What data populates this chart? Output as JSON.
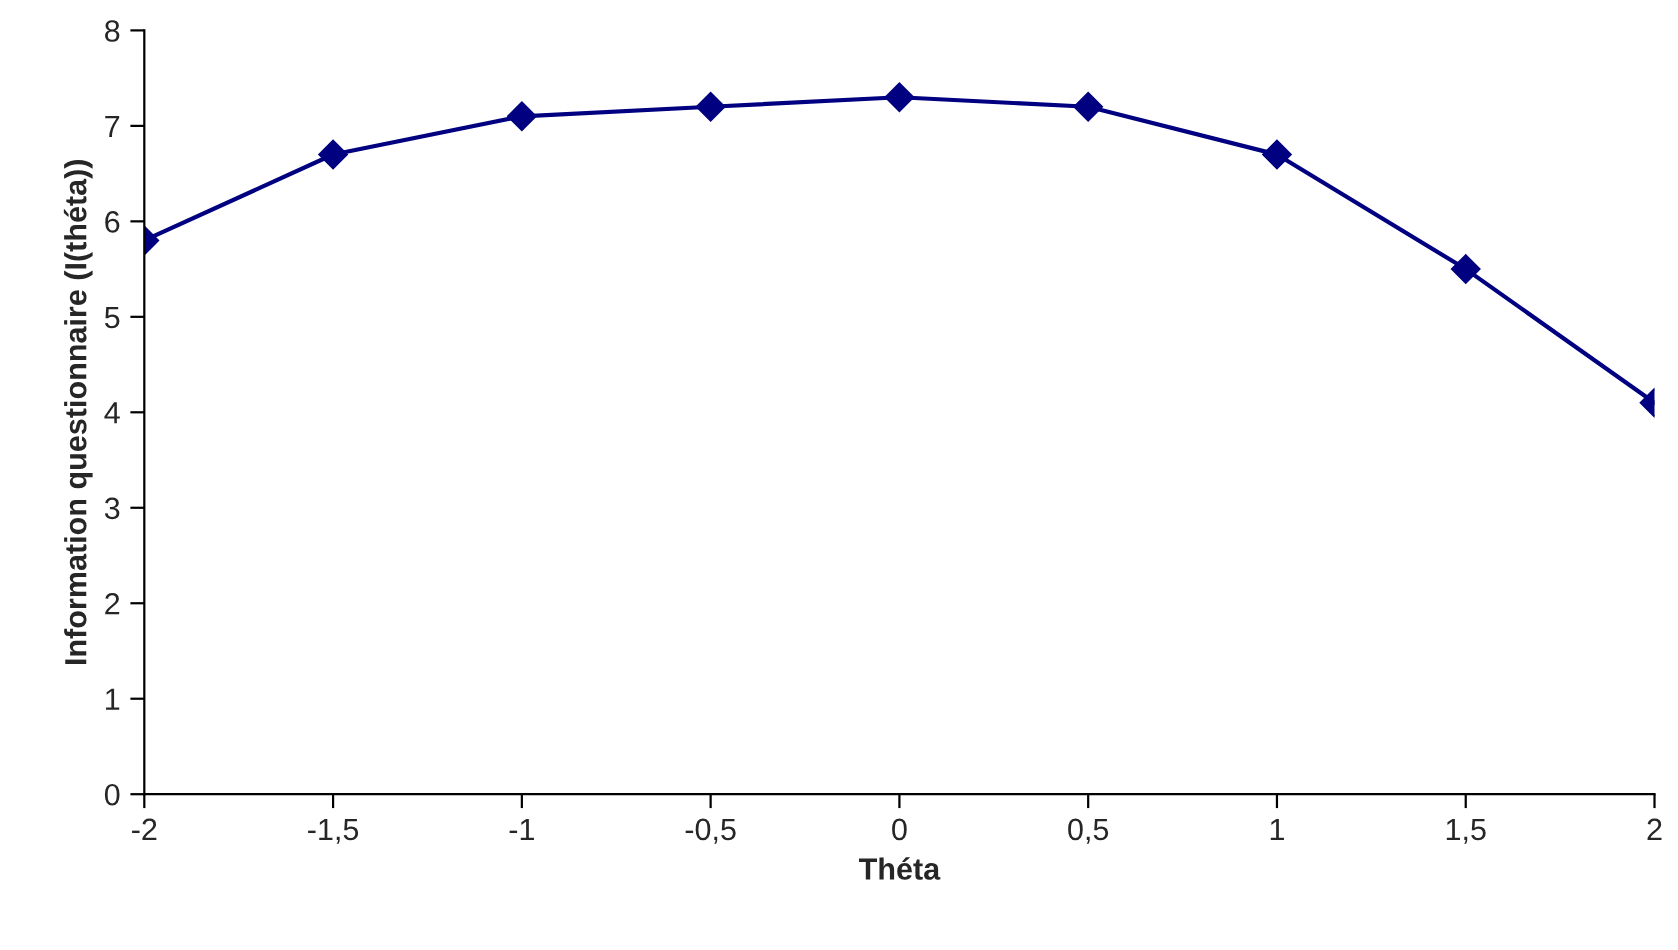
{
  "chart_data": {
    "type": "line",
    "xlabel": "Théta",
    "ylabel": "Information questionnaire (I(théta))",
    "x": [
      -2,
      -1.5,
      -1,
      -0.5,
      0,
      0.5,
      1,
      1.5,
      2
    ],
    "series": [
      {
        "color": "#000080",
        "values": [
          5.8,
          6.7,
          7.1,
          7.2,
          7.3,
          7.2,
          6.7,
          5.5,
          4.1
        ]
      }
    ],
    "xlim": [
      -2,
      2
    ],
    "xticks": [
      -2,
      {
        "value": -1.5,
        "label": "-1,5"
      },
      -1,
      {
        "value": -0.5,
        "label": "-0,5"
      },
      0,
      {
        "value": 0.5,
        "label": "0,5"
      },
      1,
      {
        "value": 1.5,
        "label": "1,5"
      },
      2
    ],
    "ylim": [
      0,
      8
    ],
    "yticks": [
      0,
      1,
      2,
      3,
      4,
      5,
      6,
      7,
      8
    ],
    "marker": "diamond",
    "line_style": "solid",
    "grid": false,
    "legend": false
  }
}
